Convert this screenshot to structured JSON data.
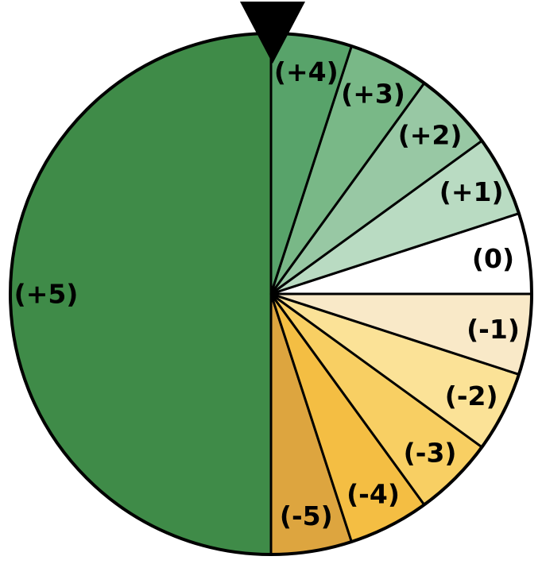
{
  "wheel": {
    "outline_color": "#000000",
    "pointer_color": "#000000",
    "segments": [
      {
        "label": "(+5)",
        "share": 0.5,
        "color": "#3f8b48"
      },
      {
        "label": "(-5)",
        "share": 0.05,
        "color": "#dda53f"
      },
      {
        "label": "(-4)",
        "share": 0.05,
        "color": "#f4be43"
      },
      {
        "label": "(-3)",
        "share": 0.05,
        "color": "#f8cf63"
      },
      {
        "label": "(-2)",
        "share": 0.05,
        "color": "#fbe297"
      },
      {
        "label": "(-1)",
        "share": 0.05,
        "color": "#f9e9c8"
      },
      {
        "label": "(0)",
        "share": 0.05,
        "color": "#ffffff"
      },
      {
        "label": "(+1)",
        "share": 0.05,
        "color": "#b9dbc2"
      },
      {
        "label": "(+2)",
        "share": 0.05,
        "color": "#98c8a4"
      },
      {
        "label": "(+3)",
        "share": 0.05,
        "color": "#79b887"
      },
      {
        "label": "(+4)",
        "share": 0.05,
        "color": "#58a36a"
      }
    ]
  }
}
